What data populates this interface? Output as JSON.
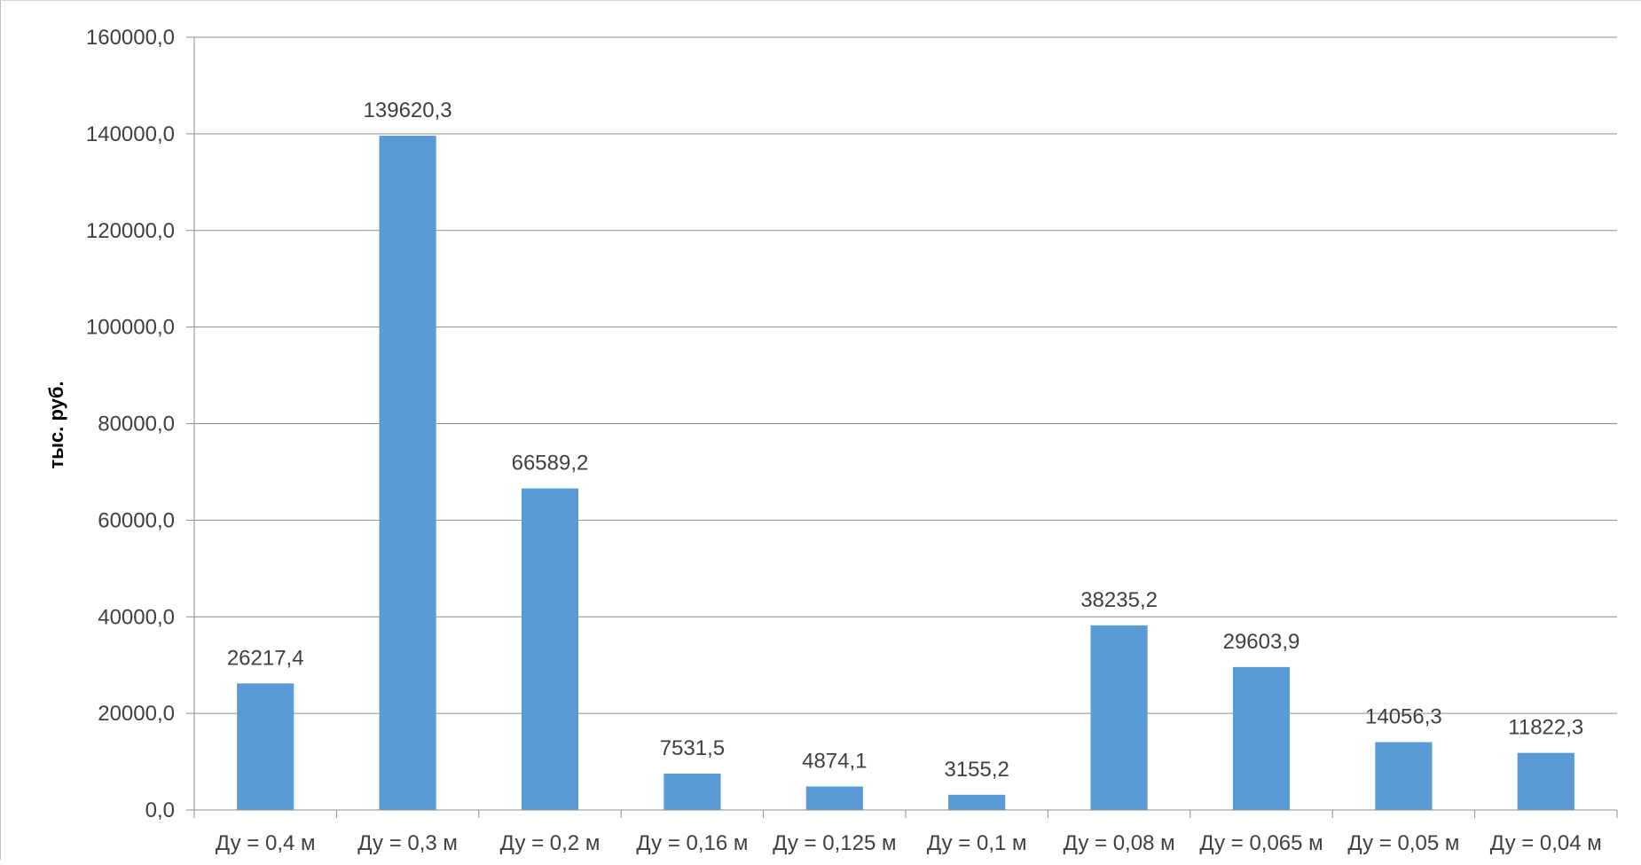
{
  "chart_data": {
    "type": "bar",
    "title": "",
    "xlabel": "",
    "ylabel": "тыс. руб.",
    "categories": [
      "Ду = 0,4 м",
      "Ду = 0,3 м",
      "Ду = 0,2 м",
      "Ду = 0,16 м",
      "Ду = 0,125 м",
      "Ду = 0,1 м",
      "Ду = 0,08 м",
      "Ду = 0,065 м",
      "Ду = 0,05 м",
      "Ду = 0,04 м"
    ],
    "values": [
      26217.4,
      139620.3,
      66589.2,
      7531.5,
      4874.1,
      3155.2,
      38235.2,
      29603.9,
      14056.3,
      11822.3
    ],
    "value_labels": [
      "26217,4",
      "139620,3",
      "66589,2",
      "7531,5",
      "4874,1",
      "3155,2",
      "38235,2",
      "29603,9",
      "14056,3",
      "11822,3"
    ],
    "ylim": [
      0,
      160000
    ],
    "yticks": [
      0,
      20000,
      40000,
      60000,
      80000,
      100000,
      120000,
      140000,
      160000
    ],
    "ytick_labels": [
      "0,0",
      "20000,0",
      "40000,0",
      "60000,0",
      "80000,0",
      "100000,0",
      "120000,0",
      "140000,0",
      "160000,0"
    ],
    "grid": true,
    "legend": "none",
    "bar_color": "#5b9bd5",
    "grid_color": "#8c8c8c"
  }
}
